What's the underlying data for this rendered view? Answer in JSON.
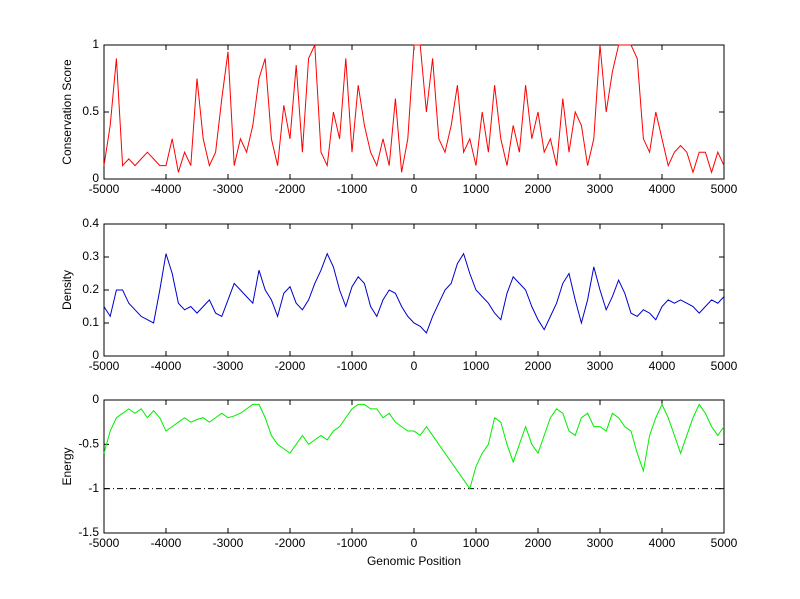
{
  "chart_data": [
    {
      "type": "line",
      "ylabel": "Conservation Score",
      "color": "#ff0000",
      "x": [
        -5000,
        -4900,
        -4800,
        -4700,
        -4600,
        -4500,
        -4400,
        -4300,
        -4200,
        -4100,
        -4000,
        -3900,
        -3800,
        -3700,
        -3600,
        -3500,
        -3400,
        -3300,
        -3200,
        -3100,
        -3000,
        -2900,
        -2800,
        -2700,
        -2600,
        -2500,
        -2400,
        -2300,
        -2200,
        -2100,
        -2000,
        -1900,
        -1800,
        -1700,
        -1600,
        -1500,
        -1400,
        -1300,
        -1200,
        -1100,
        -1000,
        -900,
        -800,
        -700,
        -600,
        -500,
        -400,
        -300,
        -200,
        -100,
        0,
        100,
        200,
        300,
        400,
        500,
        600,
        700,
        800,
        900,
        1000,
        1100,
        1200,
        1300,
        1400,
        1500,
        1600,
        1700,
        1800,
        1900,
        2000,
        2100,
        2200,
        2300,
        2400,
        2500,
        2600,
        2700,
        2800,
        2900,
        3000,
        3100,
        3200,
        3300,
        3400,
        3500,
        3600,
        3700,
        3800,
        3900,
        4000,
        4100,
        4200,
        4300,
        4400,
        4500,
        4600,
        4700,
        4800,
        4900,
        5000
      ],
      "values": [
        0.1,
        0.4,
        0.9,
        0.1,
        0.15,
        0.1,
        0.15,
        0.2,
        0.15,
        0.1,
        0.1,
        0.3,
        0.05,
        0.2,
        0.1,
        0.75,
        0.3,
        0.1,
        0.2,
        0.6,
        0.95,
        0.1,
        0.3,
        0.2,
        0.4,
        0.75,
        0.9,
        0.3,
        0.1,
        0.55,
        0.3,
        0.85,
        0.2,
        0.9,
        1,
        0.2,
        0.1,
        0.5,
        0.3,
        0.9,
        0.2,
        0.7,
        0.4,
        0.2,
        0.1,
        0.3,
        0.1,
        0.6,
        0.05,
        0.3,
        1,
        1,
        0.5,
        0.9,
        0.3,
        0.2,
        0.4,
        0.7,
        0.2,
        0.3,
        0.1,
        0.5,
        0.2,
        0.7,
        0.3,
        0.1,
        0.4,
        0.2,
        0.7,
        0.3,
        0.5,
        0.2,
        0.3,
        0.1,
        0.6,
        0.2,
        0.5,
        0.4,
        0.1,
        0.3,
        1,
        0.5,
        0.8,
        1,
        1,
        1,
        0.9,
        0.3,
        0.2,
        0.5,
        0.3,
        0.1,
        0.2,
        0.25,
        0.2,
        0.05,
        0.2,
        0.2,
        0.05,
        0.2,
        0.1
      ],
      "xlim": [
        -5000,
        5000
      ],
      "xticks": [
        -5000,
        -4000,
        -3000,
        -2000,
        -1000,
        0,
        1000,
        2000,
        3000,
        4000,
        5000
      ],
      "ylim": [
        0,
        1
      ],
      "yticks": [
        0,
        0.5,
        1
      ]
    },
    {
      "type": "line",
      "ylabel": "Density",
      "color": "#0000cc",
      "x": [
        -5000,
        -4900,
        -4800,
        -4700,
        -4600,
        -4500,
        -4400,
        -4300,
        -4200,
        -4100,
        -4000,
        -3900,
        -3800,
        -3700,
        -3600,
        -3500,
        -3400,
        -3300,
        -3200,
        -3100,
        -3000,
        -2900,
        -2800,
        -2700,
        -2600,
        -2500,
        -2400,
        -2300,
        -2200,
        -2100,
        -2000,
        -1900,
        -1800,
        -1700,
        -1600,
        -1500,
        -1400,
        -1300,
        -1200,
        -1100,
        -1000,
        -900,
        -800,
        -700,
        -600,
        -500,
        -400,
        -300,
        -200,
        -100,
        0,
        100,
        200,
        300,
        400,
        500,
        600,
        700,
        800,
        900,
        1000,
        1100,
        1200,
        1300,
        1400,
        1500,
        1600,
        1700,
        1800,
        1900,
        2000,
        2100,
        2200,
        2300,
        2400,
        2500,
        2600,
        2700,
        2800,
        2900,
        3000,
        3100,
        3200,
        3300,
        3400,
        3500,
        3600,
        3700,
        3800,
        3900,
        4000,
        4100,
        4200,
        4300,
        4400,
        4500,
        4600,
        4700,
        4800,
        4900,
        5000
      ],
      "values": [
        0.15,
        0.12,
        0.2,
        0.2,
        0.16,
        0.14,
        0.12,
        0.11,
        0.1,
        0.2,
        0.31,
        0.25,
        0.16,
        0.14,
        0.15,
        0.13,
        0.15,
        0.17,
        0.13,
        0.12,
        0.17,
        0.22,
        0.2,
        0.18,
        0.16,
        0.26,
        0.2,
        0.17,
        0.12,
        0.19,
        0.21,
        0.16,
        0.14,
        0.17,
        0.22,
        0.26,
        0.31,
        0.27,
        0.2,
        0.15,
        0.21,
        0.24,
        0.22,
        0.15,
        0.12,
        0.17,
        0.2,
        0.19,
        0.15,
        0.12,
        0.1,
        0.09,
        0.07,
        0.12,
        0.16,
        0.2,
        0.22,
        0.28,
        0.31,
        0.25,
        0.2,
        0.18,
        0.16,
        0.13,
        0.11,
        0.19,
        0.24,
        0.22,
        0.2,
        0.15,
        0.11,
        0.08,
        0.12,
        0.16,
        0.22,
        0.25,
        0.17,
        0.1,
        0.17,
        0.27,
        0.2,
        0.14,
        0.18,
        0.23,
        0.19,
        0.13,
        0.12,
        0.14,
        0.13,
        0.11,
        0.15,
        0.17,
        0.16,
        0.17,
        0.16,
        0.15,
        0.13,
        0.15,
        0.17,
        0.16,
        0.18
      ],
      "xlim": [
        -5000,
        5000
      ],
      "xticks": [
        -5000,
        -4000,
        -3000,
        -2000,
        -1000,
        0,
        1000,
        2000,
        3000,
        4000,
        5000
      ],
      "ylim": [
        0,
        0.4
      ],
      "yticks": [
        0,
        0.1,
        0.2,
        0.3,
        0.4
      ]
    },
    {
      "type": "line",
      "ylabel": "Energy",
      "xlabel": "Genomic Position",
      "color": "#00ee00",
      "x": [
        -5000,
        -4900,
        -4800,
        -4700,
        -4600,
        -4500,
        -4400,
        -4300,
        -4200,
        -4100,
        -4000,
        -3900,
        -3800,
        -3700,
        -3600,
        -3500,
        -3400,
        -3300,
        -3200,
        -3100,
        -3000,
        -2900,
        -2800,
        -2700,
        -2600,
        -2500,
        -2400,
        -2300,
        -2200,
        -2100,
        -2000,
        -1900,
        -1800,
        -1700,
        -1600,
        -1500,
        -1400,
        -1300,
        -1200,
        -1100,
        -1000,
        -900,
        -800,
        -700,
        -600,
        -500,
        -400,
        -300,
        -200,
        -100,
        0,
        100,
        200,
        300,
        400,
        500,
        600,
        700,
        800,
        900,
        1000,
        1100,
        1200,
        1300,
        1400,
        1500,
        1600,
        1700,
        1800,
        1900,
        2000,
        2100,
        2200,
        2300,
        2400,
        2500,
        2600,
        2700,
        2800,
        2900,
        3000,
        3100,
        3200,
        3300,
        3400,
        3500,
        3600,
        3700,
        3800,
        3900,
        4000,
        4100,
        4200,
        4300,
        4400,
        4500,
        4600,
        4700,
        4800,
        4900,
        5000
      ],
      "values": [
        -0.6,
        -0.35,
        -0.2,
        -0.15,
        -0.1,
        -0.15,
        -0.1,
        -0.2,
        -0.12,
        -0.2,
        -0.35,
        -0.3,
        -0.25,
        -0.2,
        -0.25,
        -0.22,
        -0.2,
        -0.25,
        -0.2,
        -0.15,
        -0.2,
        -0.18,
        -0.15,
        -0.1,
        -0.05,
        -0.05,
        -0.2,
        -0.4,
        -0.5,
        -0.55,
        -0.6,
        -0.5,
        -0.4,
        -0.5,
        -0.45,
        -0.4,
        -0.45,
        -0.35,
        -0.3,
        -0.2,
        -0.1,
        -0.05,
        -0.05,
        -0.1,
        -0.1,
        -0.2,
        -0.15,
        -0.25,
        -0.3,
        -0.35,
        -0.35,
        -0.4,
        -0.3,
        -0.4,
        -0.5,
        -0.6,
        -0.7,
        -0.8,
        -0.9,
        -1,
        -0.75,
        -0.6,
        -0.5,
        -0.2,
        -0.25,
        -0.5,
        -0.7,
        -0.5,
        -0.3,
        -0.5,
        -0.6,
        -0.4,
        -0.2,
        -0.1,
        -0.15,
        -0.35,
        -0.4,
        -0.2,
        -0.15,
        -0.3,
        -0.3,
        -0.35,
        -0.15,
        -0.2,
        -0.3,
        -0.35,
        -0.6,
        -0.8,
        -0.4,
        -0.2,
        -0.05,
        -0.2,
        -0.4,
        -0.6,
        -0.4,
        -0.2,
        -0.05,
        -0.15,
        -0.3,
        -0.4,
        -0.3
      ],
      "xlim": [
        -5000,
        5000
      ],
      "xticks": [
        -5000,
        -4000,
        -3000,
        -2000,
        -1000,
        0,
        1000,
        2000,
        3000,
        4000,
        5000
      ],
      "ylim": [
        -1.5,
        0
      ],
      "yticks": [
        -1.5,
        -1,
        -0.5,
        0
      ],
      "hline": -1
    }
  ]
}
